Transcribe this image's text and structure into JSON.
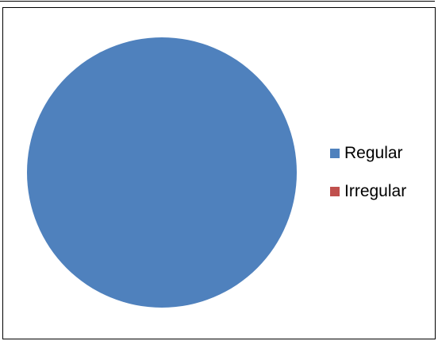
{
  "header_text": "",
  "chart_data": {
    "type": "pie",
    "title": "",
    "categories": [
      "Regular",
      "Irregular"
    ],
    "values": [
      100,
      0
    ],
    "colors": [
      "#4F81BD",
      "#C0504D"
    ],
    "legend_position": "right"
  }
}
